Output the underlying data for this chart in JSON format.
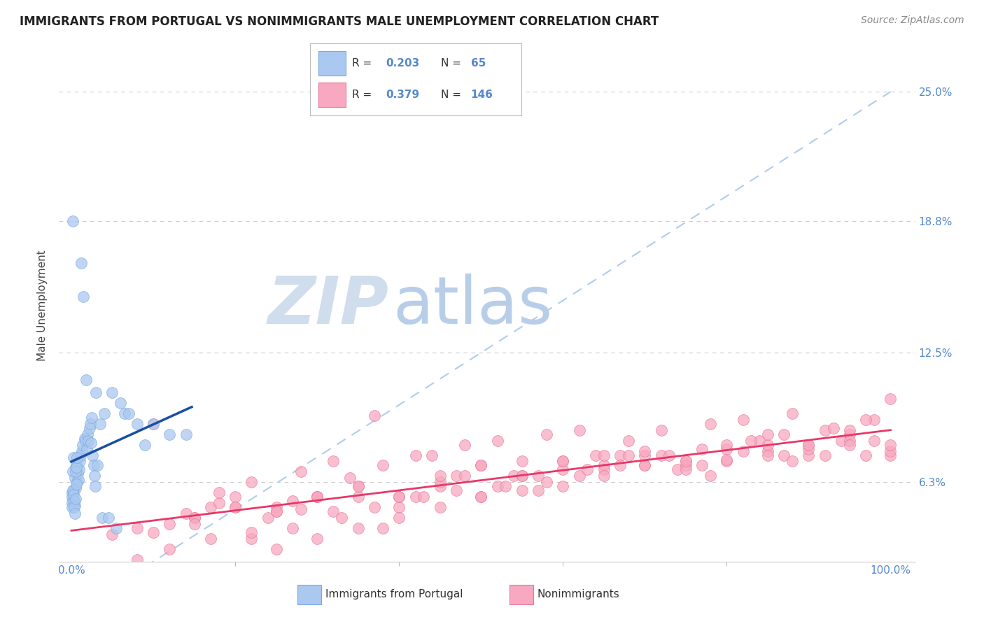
{
  "title": "IMMIGRANTS FROM PORTUGAL VS NONIMMIGRANTS MALE UNEMPLOYMENT CORRELATION CHART",
  "source": "Source: ZipAtlas.com",
  "ylabel": "Male Unemployment",
  "ytick_labels": [
    "6.3%",
    "12.5%",
    "18.8%",
    "25.0%"
  ],
  "ytick_values": [
    6.3,
    12.5,
    18.8,
    25.0
  ],
  "xlim": [
    -1.5,
    103
  ],
  "ylim": [
    2.5,
    27.0
  ],
  "blue_scatter_color": "#aac8f0",
  "blue_scatter_edge": "#7aaae0",
  "pink_scatter_color": "#f8a8c0",
  "pink_scatter_edge": "#e87898",
  "blue_line_color": "#1a4fa0",
  "pink_line_color": "#e83868",
  "dashed_line_color": "#b0ccee",
  "watermark_zip_color": "#d0dded",
  "watermark_atlas_color": "#b8cee8",
  "title_fontsize": 12,
  "source_fontsize": 10,
  "tick_label_color": "#5588cc",
  "background_color": "#ffffff",
  "blue_pts_x": [
    0.3,
    0.5,
    0.2,
    0.4,
    0.6,
    0.1,
    0.15,
    0.25,
    0.35,
    0.45,
    0.55,
    0.65,
    0.75,
    0.85,
    0.95,
    1.0,
    1.1,
    1.2,
    1.3,
    1.4,
    1.5,
    1.6,
    1.7,
    1.8,
    1.9,
    2.0,
    2.1,
    2.2,
    2.3,
    2.4,
    2.5,
    2.6,
    2.7,
    2.8,
    2.9,
    3.0,
    3.2,
    3.5,
    3.8,
    4.0,
    4.5,
    5.0,
    5.5,
    6.0,
    6.5,
    7.0,
    8.0,
    9.0,
    10.0,
    12.0,
    14.0,
    0.05,
    0.08,
    0.12,
    0.18,
    0.22,
    0.28,
    0.32,
    0.38,
    0.42,
    0.48,
    0.52,
    0.58,
    0.62,
    0.68
  ],
  "blue_pts_y": [
    7.5,
    7.0,
    6.8,
    6.5,
    7.2,
    5.8,
    5.5,
    5.9,
    5.4,
    5.2,
    6.0,
    6.3,
    6.7,
    6.4,
    6.9,
    7.3,
    7.6,
    16.8,
    7.8,
    8.1,
    15.2,
    8.4,
    8.3,
    11.2,
    7.9,
    8.6,
    8.3,
    8.9,
    9.1,
    8.2,
    9.4,
    7.6,
    7.1,
    6.6,
    6.1,
    10.6,
    7.1,
    9.1,
    4.6,
    9.6,
    4.6,
    10.6,
    4.1,
    10.1,
    9.6,
    9.6,
    9.1,
    8.1,
    9.1,
    8.6,
    8.6,
    5.6,
    5.3,
    5.1,
    5.9,
    18.8,
    5.7,
    5.4,
    5.1,
    4.8,
    5.5,
    6.8,
    6.2,
    7.0,
    7.5
  ],
  "pink_pts_x": [
    5.0,
    8.0,
    10.0,
    12.0,
    14.0,
    15.0,
    17.0,
    18.0,
    20.0,
    22.0,
    24.0,
    25.0,
    27.0,
    28.0,
    30.0,
    32.0,
    34.0,
    35.0,
    37.0,
    38.0,
    40.0,
    42.0,
    44.0,
    45.0,
    47.0,
    48.0,
    50.0,
    52.0,
    54.0,
    55.0,
    57.0,
    58.0,
    60.0,
    62.0,
    64.0,
    65.0,
    67.0,
    68.0,
    70.0,
    72.0,
    74.0,
    75.0,
    77.0,
    78.0,
    80.0,
    82.0,
    84.0,
    85.0,
    87.0,
    88.0,
    90.0,
    92.0,
    94.0,
    95.0,
    97.0,
    98.0,
    100.0,
    15.0,
    20.0,
    25.0,
    30.0,
    35.0,
    40.0,
    45.0,
    50.0,
    55.0,
    60.0,
    65.0,
    70.0,
    75.0,
    80.0,
    85.0,
    90.0,
    95.0,
    100.0,
    25.0,
    30.0,
    35.0,
    40.0,
    45.0,
    50.0,
    55.0,
    60.0,
    65.0,
    70.0,
    75.0,
    80.0,
    85.0,
    90.0,
    95.0,
    20.0,
    25.0,
    30.0,
    35.0,
    40.0,
    45.0,
    50.0,
    55.0,
    60.0,
    65.0,
    70.0,
    75.0,
    80.0,
    85.0,
    90.0,
    95.0,
    100.0,
    10.0,
    15.0,
    18.0,
    22.0,
    28.0,
    32.0,
    38.0,
    42.0,
    48.0,
    52.0,
    58.0,
    62.0,
    68.0,
    72.0,
    78.0,
    82.0,
    88.0,
    92.0,
    98.0,
    8.0,
    12.0,
    17.0,
    22.0,
    27.0,
    33.0,
    37.0,
    43.0,
    47.0,
    53.0,
    57.0,
    63.0,
    67.0,
    73.0,
    77.0,
    83.0,
    87.0,
    93.0,
    97.0,
    100.0
  ],
  "pink_pts_y": [
    3.8,
    4.1,
    3.9,
    4.3,
    4.8,
    4.6,
    5.1,
    5.3,
    5.6,
    3.6,
    4.6,
    5.1,
    5.4,
    5.0,
    5.6,
    4.9,
    6.5,
    5.6,
    9.5,
    4.1,
    5.1,
    5.6,
    7.6,
    6.1,
    6.6,
    6.6,
    5.6,
    6.1,
    6.6,
    7.3,
    5.9,
    6.3,
    6.9,
    6.6,
    7.6,
    7.1,
    7.6,
    7.6,
    7.1,
    7.6,
    6.9,
    7.3,
    7.1,
    6.6,
    7.3,
    7.8,
    8.3,
    7.8,
    7.6,
    7.3,
    8.1,
    7.6,
    8.3,
    8.6,
    7.6,
    8.3,
    7.6,
    4.6,
    5.1,
    4.9,
    5.6,
    6.1,
    5.6,
    6.3,
    7.1,
    6.6,
    7.3,
    6.9,
    7.6,
    7.1,
    7.9,
    8.1,
    7.6,
    8.3,
    7.8,
    3.1,
    3.6,
    4.1,
    4.6,
    5.1,
    5.6,
    5.9,
    6.1,
    6.6,
    7.1,
    6.9,
    7.4,
    7.6,
    7.9,
    8.1,
    5.1,
    4.9,
    5.6,
    6.1,
    5.6,
    6.6,
    7.1,
    6.6,
    7.3,
    7.6,
    7.8,
    7.3,
    8.1,
    8.6,
    8.1,
    8.8,
    8.1,
    9.1,
    4.3,
    5.8,
    6.3,
    6.8,
    7.3,
    7.1,
    7.6,
    8.1,
    8.3,
    8.6,
    8.8,
    8.3,
    8.8,
    9.1,
    9.3,
    9.6,
    8.8,
    9.3,
    2.6,
    3.1,
    3.6,
    3.9,
    4.1,
    4.6,
    5.1,
    5.6,
    5.9,
    6.1,
    6.6,
    6.9,
    7.1,
    7.6,
    7.9,
    8.3,
    8.6,
    8.9,
    9.3,
    10.3
  ]
}
